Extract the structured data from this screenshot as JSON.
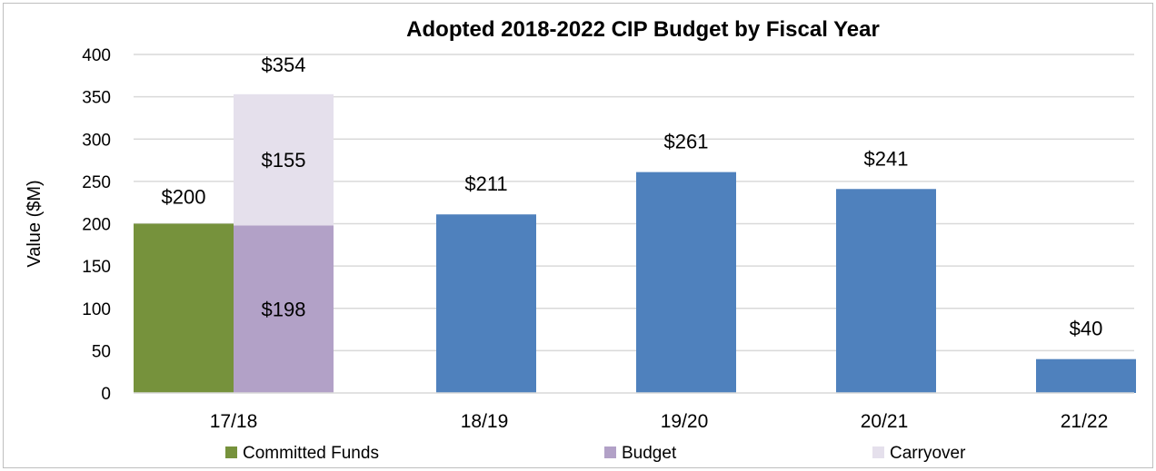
{
  "chart_data": {
    "type": "bar",
    "title": "Adopted 2018-2022 CIP Budget by Fiscal Year",
    "ylabel": "Value ($M)",
    "ylim": [
      0,
      400
    ],
    "yticks": [
      0,
      50,
      100,
      150,
      200,
      250,
      300,
      350,
      400
    ],
    "grid": true,
    "legend_position": "bottom",
    "categories": [
      "17/18",
      "18/19",
      "19/20",
      "20/21",
      "21/22"
    ],
    "series": [
      {
        "name": "Committed Funds",
        "color": "#76923c",
        "values": [
          200,
          null,
          null,
          null,
          null
        ],
        "labels": [
          "$200",
          "",
          "",
          "",
          ""
        ]
      },
      {
        "name": "Budget",
        "color": "#b2a1c7",
        "values": [
          198,
          null,
          null,
          null,
          null
        ],
        "labels": [
          "$198",
          "",
          "",
          "",
          ""
        ]
      },
      {
        "name": "Carryover",
        "color": "#e5e0ec",
        "values": [
          155,
          null,
          null,
          null,
          null
        ],
        "labels": [
          "$155",
          "",
          "",
          "",
          ""
        ]
      },
      {
        "name": "",
        "color": "#4f81bd",
        "values": [
          null,
          211,
          261,
          241,
          40
        ],
        "labels": [
          "",
          "$211",
          "$261",
          "$241",
          "$40"
        ]
      }
    ],
    "stack_total_label": "$354"
  }
}
